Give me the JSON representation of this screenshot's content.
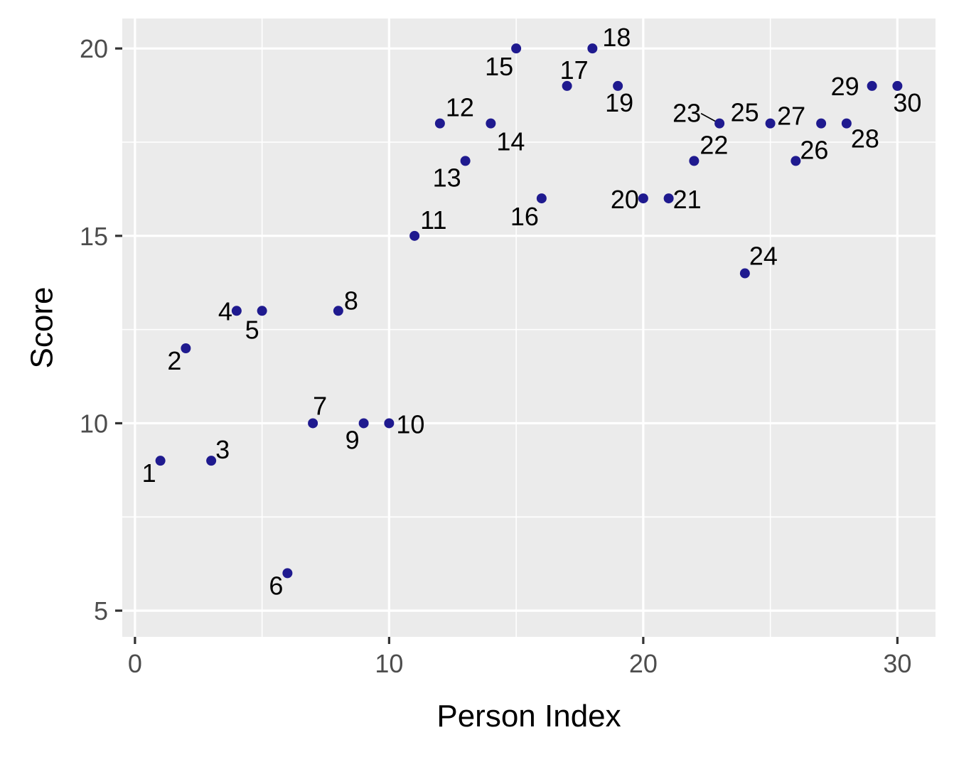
{
  "chart_data": {
    "type": "scatter",
    "title": "",
    "xlabel": "Person Index",
    "ylabel": "Score",
    "xlim": [
      -0.5,
      31.5
    ],
    "ylim": [
      4.3,
      20.8
    ],
    "x_ticks": [
      0,
      10,
      20,
      30
    ],
    "y_ticks": [
      5,
      10,
      15,
      20
    ],
    "x_minor_ticks": [
      5,
      15,
      25
    ],
    "y_minor_ticks": [
      7.5,
      12.5,
      17.5
    ],
    "grid": true,
    "legend": "none",
    "colors": {
      "panel_bg": "#ebebeb",
      "grid": "#ffffff",
      "point": "#1f1a8f",
      "tick_text": "#4d4d4d",
      "tick_mark": "#333333"
    },
    "points": [
      {
        "x": 1,
        "y": 9,
        "label": "1"
      },
      {
        "x": 2,
        "y": 12,
        "label": "2"
      },
      {
        "x": 3,
        "y": 9,
        "label": "3"
      },
      {
        "x": 4,
        "y": 13,
        "label": "4"
      },
      {
        "x": 5,
        "y": 13,
        "label": "5"
      },
      {
        "x": 6,
        "y": 6,
        "label": "6"
      },
      {
        "x": 7,
        "y": 10,
        "label": "7"
      },
      {
        "x": 8,
        "y": 13,
        "label": "8"
      },
      {
        "x": 9,
        "y": 10,
        "label": "9"
      },
      {
        "x": 10,
        "y": 10,
        "label": "10"
      },
      {
        "x": 11,
        "y": 15,
        "label": "11"
      },
      {
        "x": 12,
        "y": 18,
        "label": "12"
      },
      {
        "x": 13,
        "y": 17,
        "label": "13"
      },
      {
        "x": 14,
        "y": 18,
        "label": "14"
      },
      {
        "x": 15,
        "y": 20,
        "label": "15"
      },
      {
        "x": 16,
        "y": 16,
        "label": "16"
      },
      {
        "x": 17,
        "y": 19,
        "label": "17"
      },
      {
        "x": 18,
        "y": 20,
        "label": "18"
      },
      {
        "x": 19,
        "y": 19,
        "label": "19"
      },
      {
        "x": 20,
        "y": 16,
        "label": "20"
      },
      {
        "x": 21,
        "y": 16,
        "label": "21"
      },
      {
        "x": 22,
        "y": 17,
        "label": "22"
      },
      {
        "x": 23,
        "y": 18,
        "label": "23"
      },
      {
        "x": 24,
        "y": 14,
        "label": "24"
      },
      {
        "x": 25,
        "y": 18,
        "label": "25"
      },
      {
        "x": 26,
        "y": 17,
        "label": "26"
      },
      {
        "x": 27,
        "y": 18,
        "label": "27"
      },
      {
        "x": 28,
        "y": 18,
        "label": "28"
      },
      {
        "x": 29,
        "y": 19,
        "label": "29"
      },
      {
        "x": 30,
        "y": 19,
        "label": "30"
      }
    ]
  }
}
